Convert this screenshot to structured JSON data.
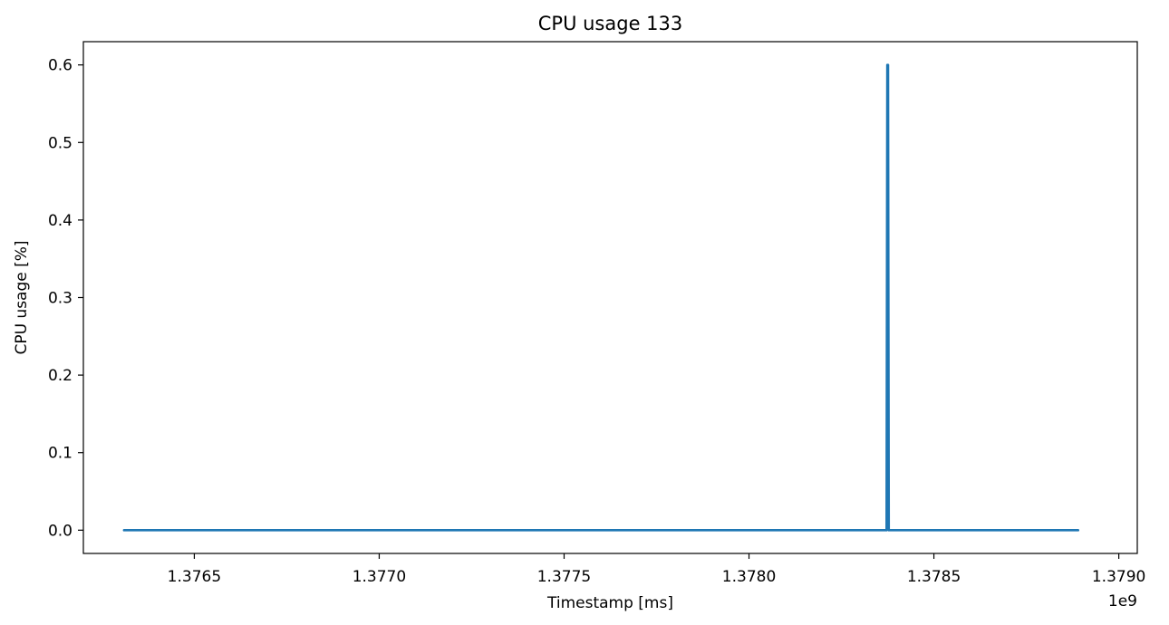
{
  "chart_data": {
    "type": "line",
    "title": "CPU usage 133",
    "xlabel": "Timestamp [ms]",
    "ylabel": "CPU usage [%]",
    "x_offset_label": "1e9",
    "xlim": [
      1376200000,
      1379050000
    ],
    "ylim": [
      -0.03,
      0.63
    ],
    "x_ticks": [
      1376500000,
      1377000000,
      1377500000,
      1378000000,
      1378500000,
      1379000000
    ],
    "x_tick_labels": [
      "1.3765",
      "1.3770",
      "1.3775",
      "1.3780",
      "1.3785",
      "1.3790"
    ],
    "y_ticks": [
      0.0,
      0.1,
      0.2,
      0.3,
      0.4,
      0.5,
      0.6
    ],
    "y_tick_labels": [
      "0.0",
      "0.1",
      "0.2",
      "0.3",
      "0.4",
      "0.5",
      "0.6"
    ],
    "grid": false,
    "legend": "none",
    "series": [
      {
        "color": "#1f77b4",
        "x": [
          1376310000,
          1378372000,
          1378374000,
          1378376000,
          1378378000,
          1378890000
        ],
        "y": [
          0.0,
          0.0,
          0.6,
          0.6,
          0.0,
          0.0
        ]
      }
    ]
  }
}
